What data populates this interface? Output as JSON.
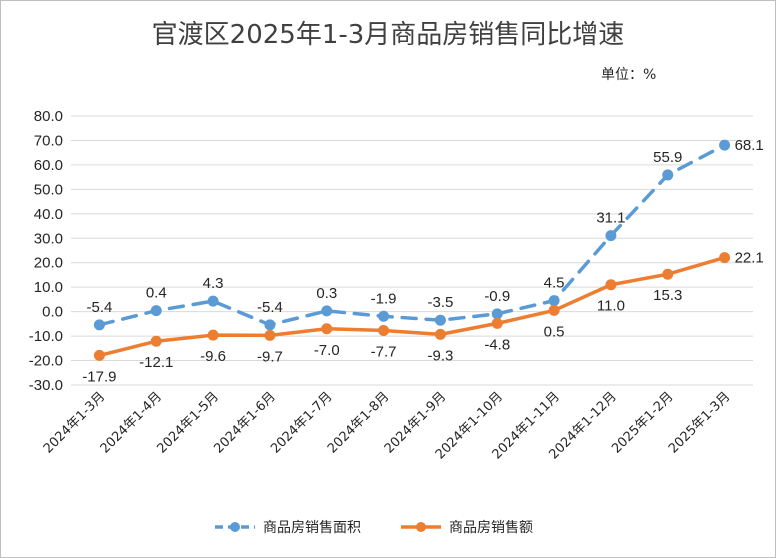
{
  "chart_data": {
    "type": "line",
    "title": "官渡区2025年1-3月商品房销售同比增速",
    "unit": "单位：%",
    "categories": [
      "2024年1-3月",
      "2024年1-4月",
      "2024年1-5月",
      "2024年1-6月",
      "2024年1-7月",
      "2024年1-8月",
      "2024年1-9月",
      "2024年1-10月",
      "2024年1-11月",
      "2024年1-12月",
      "2025年1-2月",
      "2025年1-3月"
    ],
    "series": [
      {
        "name": "商品房销售面积",
        "color": "#5b9bd5",
        "style": "dashed",
        "values": [
          -5.4,
          0.4,
          4.3,
          -5.4,
          0.3,
          -1.9,
          -3.5,
          -0.9,
          4.5,
          31.1,
          55.9,
          68.1
        ],
        "labels": [
          "-5.4",
          "0.4",
          "4.3",
          "-5.4",
          "0.3",
          "-1.9",
          "-3.5",
          "-0.9",
          "4.5",
          "31.1",
          "55.9",
          "68.1"
        ]
      },
      {
        "name": "商品房销售额",
        "color": "#ed7d31",
        "style": "solid",
        "values": [
          -17.9,
          -12.1,
          -9.6,
          -9.7,
          -7.0,
          -7.7,
          -9.3,
          -4.8,
          0.5,
          11.0,
          15.3,
          22.1
        ],
        "labels": [
          "-17.9",
          "-12.1",
          "-9.6",
          "-9.7",
          "-7.0",
          "-7.7",
          "-9.3",
          "-4.8",
          "0.5",
          "11.0",
          "15.3",
          "22.1"
        ]
      }
    ],
    "ylim": [
      -30,
      80
    ],
    "yticks": [
      "80.0",
      "70.0",
      "60.0",
      "50.0",
      "40.0",
      "30.0",
      "20.0",
      "10.0",
      "0.0",
      "-10.0",
      "-20.0",
      "-30.0"
    ],
    "grid": true,
    "legend": "bottom"
  }
}
